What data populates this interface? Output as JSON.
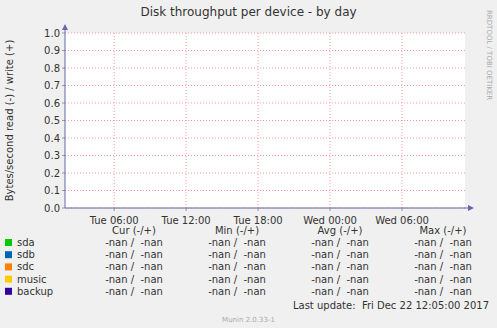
{
  "chart_data": {
    "type": "line",
    "title": "Disk throughput per device - by day",
    "y_label": "Bytes/second read (-) / write (+)",
    "x": [
      2,
      35
    ],
    "xlim": [
      1.9,
      35.25
    ],
    "xticks": [
      {
        "value": 6,
        "label": "Tue 06:00"
      },
      {
        "value": 12,
        "label": "Tue 12:00"
      },
      {
        "value": 18,
        "label": "Tue 18:00"
      },
      {
        "value": 24,
        "label": "Wed 00:00"
      },
      {
        "value": 30,
        "label": "Wed 06:00"
      }
    ],
    "ylim": [
      0,
      1
    ],
    "yticks": [
      {
        "value": 0,
        "label": "0.0"
      },
      0.1,
      0.2,
      0.3,
      0.4,
      0.5,
      0.6,
      0.7,
      0.8,
      0.9,
      {
        "value": 1,
        "label": "1.0"
      }
    ],
    "grid": true,
    "legend_columns": [
      "Cur (-/+)",
      "Min (-/+)",
      "Avg (-/+)",
      "Max (-/+)"
    ],
    "series": [
      {
        "name": "sda",
        "color": "#00cc00",
        "values": [
          null,
          null
        ],
        "legend_values": [
          "-nan /  -nan",
          "-nan /  -nan",
          "-nan /  -nan",
          "-nan /  -nan"
        ]
      },
      {
        "name": "sdb",
        "color": "#0066b3",
        "values": [
          null,
          null
        ],
        "legend_values": [
          "-nan /  -nan",
          "-nan /  -nan",
          "-nan /  -nan",
          "-nan /  -nan"
        ]
      },
      {
        "name": "sdc",
        "color": "#ff8000",
        "values": [
          null,
          null
        ],
        "legend_values": [
          "-nan /  -nan",
          "-nan /  -nan",
          "-nan /  -nan",
          "-nan /  -nan"
        ]
      },
      {
        "name": "music",
        "color": "#ffcc00",
        "values": [
          null,
          null
        ],
        "legend_values": [
          "-nan /  -nan",
          "-nan /  -nan",
          "-nan /  -nan",
          "-nan /  -nan"
        ]
      },
      {
        "name": "backup",
        "color": "#330099",
        "values": [
          null,
          null
        ],
        "legend_values": [
          "-nan /  -nan",
          "-nan /  -nan",
          "-nan /  -nan",
          "-nan /  -nan"
        ]
      }
    ],
    "last_update": "Last update:  Fri Dec 22 12:05:00 2017",
    "footer": "Munin 2.0.33-1",
    "watermark": "RRDTOOL / TOBI OETIKER"
  }
}
